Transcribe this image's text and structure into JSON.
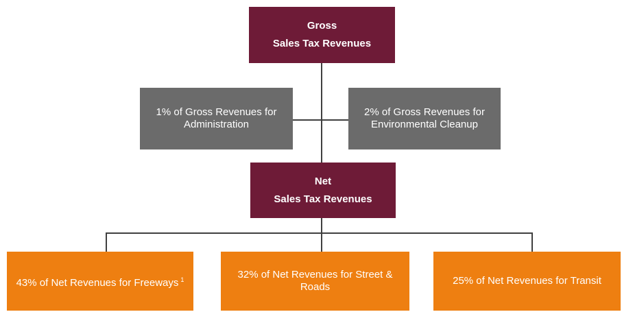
{
  "nodes": [
    {
      "id": "gross",
      "lines": [
        "Gross",
        "Sales Tax Revenues"
      ]
    },
    {
      "id": "admin",
      "lines": [
        "1% of Gross Revenues for",
        "Administration"
      ]
    },
    {
      "id": "env",
      "lines": [
        "2% of Gross Revenues for",
        "Environmental Cleanup"
      ]
    },
    {
      "id": "net",
      "lines": [
        "Net",
        "Sales Tax Revenues"
      ]
    },
    {
      "id": "freeways",
      "lines": [
        "43% of Net Revenues for Freeways"
      ],
      "footnote": "1"
    },
    {
      "id": "streets",
      "lines": [
        "32% of Net Revenues for Street &",
        "Roads"
      ]
    },
    {
      "id": "transit",
      "lines": [
        "25% of Net Revenues for Transit"
      ]
    }
  ]
}
